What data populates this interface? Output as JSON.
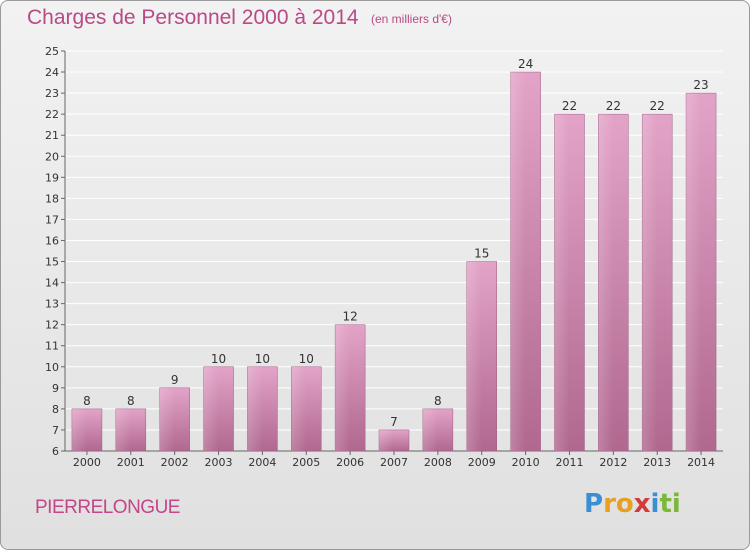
{
  "title": "Charges de Personnel 2000 à 2014",
  "unit": "(en milliers d'€)",
  "commune": "PIERRELONGUE",
  "logo": {
    "letters": [
      {
        "ch": "P",
        "color": "#3a8fd4"
      },
      {
        "ch": "r",
        "color": "#e8a020"
      },
      {
        "ch": "o",
        "color": "#e8a020"
      },
      {
        "ch": "x",
        "color": "#d43a3a"
      },
      {
        "ch": "i",
        "color": "#3a8fd4"
      },
      {
        "ch": "t",
        "color": "#7ab83a"
      },
      {
        "ch": "i",
        "color": "#7ab83a"
      }
    ]
  },
  "chart_data": {
    "type": "bar",
    "categories": [
      "2000",
      "2001",
      "2002",
      "2003",
      "2004",
      "2005",
      "2006",
      "2007",
      "2008",
      "2009",
      "2010",
      "2011",
      "2012",
      "2013",
      "2014"
    ],
    "values": [
      8,
      8,
      9,
      10,
      10,
      10,
      12,
      7,
      8,
      15,
      24,
      22,
      22,
      22,
      23
    ],
    "data_labels": [
      "8",
      "8",
      "9",
      "10",
      "10",
      "10",
      "12",
      "7",
      "8",
      "15",
      "24",
      "22",
      "22",
      "22",
      "23"
    ],
    "yticks": [
      "6",
      "7",
      "8",
      "9",
      "10",
      "11",
      "12",
      "13",
      "14",
      "15",
      "16",
      "17",
      "18",
      "19",
      "20",
      "21",
      "22",
      "23",
      "24",
      "25"
    ],
    "ylim": [
      6,
      25
    ],
    "grid": true,
    "bar_color": "#d98cb8"
  }
}
